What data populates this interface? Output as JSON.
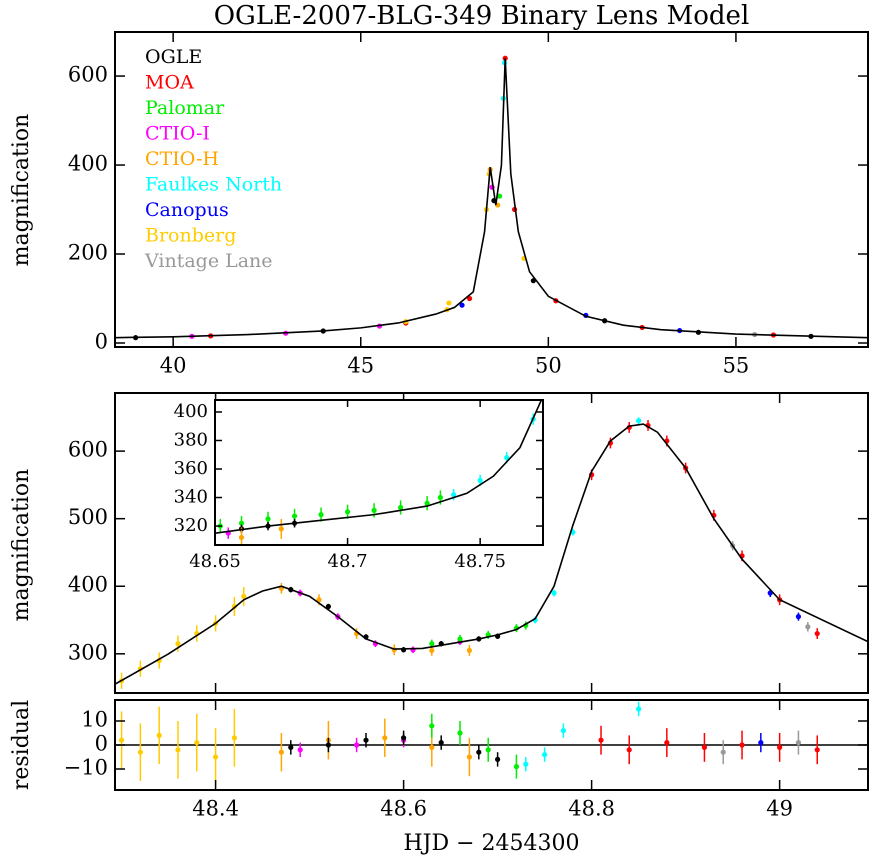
{
  "chart_data": [
    {
      "type": "scatter",
      "title": "OGLE-2007-BLG-349 Binary Lens Model",
      "ylabel": "magnification",
      "xlim": [
        38.45,
        58.52
      ],
      "ylim": [
        -9,
        699
      ],
      "xticks": [
        40,
        45,
        50,
        55
      ],
      "yticks": [
        0,
        200,
        400,
        600
      ],
      "legend": "upper left",
      "model": {
        "color": "#000000",
        "x": [
          38.45,
          40,
          42,
          44,
          45,
          46,
          47,
          47.5,
          48,
          48.3,
          48.45,
          48.6,
          48.75,
          48.85,
          49.0,
          49.2,
          49.5,
          50,
          51,
          52,
          53,
          55,
          58.52
        ],
        "values": [
          12,
          14,
          19,
          27,
          34,
          45,
          65,
          80,
          115,
          250,
          395,
          310,
          400,
          640,
          380,
          250,
          160,
          105,
          60,
          40,
          30,
          20,
          12
        ]
      },
      "series": [
        {
          "name": "OGLE",
          "color": "#000000",
          "x": [
            39,
            44,
            48.55,
            49.6,
            51.5,
            54,
            57
          ],
          "values": [
            12,
            27,
            320,
            140,
            50,
            24,
            15
          ]
        },
        {
          "name": "MOA",
          "color": "#ff0000",
          "x": [
            41,
            46.2,
            47.9,
            48.85,
            49.1,
            50.2,
            52.5,
            56
          ],
          "values": [
            16,
            45,
            100,
            640,
            300,
            95,
            35,
            18
          ]
        },
        {
          "name": "Palomar",
          "color": "#00ee00",
          "x": [
            48.7
          ],
          "values": [
            330
          ]
        },
        {
          "name": "CTIO-I",
          "color": "#ff00ff",
          "x": [
            40.5,
            43,
            45.5,
            48.5
          ],
          "values": [
            15,
            22,
            38,
            350
          ]
        },
        {
          "name": "CTIO-H",
          "color": "#ffa500",
          "x": [
            48.45,
            48.65
          ],
          "values": [
            390,
            310
          ]
        },
        {
          "name": "Faulkes North",
          "color": "#00ffff",
          "x": [
            48.8,
            48.83
          ],
          "values": [
            550,
            630
          ]
        },
        {
          "name": "Canopus",
          "color": "#0000ff",
          "x": [
            47.7,
            51,
            53.5
          ],
          "values": [
            85,
            62,
            28
          ]
        },
        {
          "name": "Bronberg",
          "color": "#ffcc00",
          "x": [
            46.2,
            47.3,
            47.35,
            48.35,
            48.42,
            49.35
          ],
          "values": [
            48,
            75,
            90,
            300,
            380,
            190
          ]
        },
        {
          "name": "Vintage Lane",
          "color": "#999999",
          "x": [
            55.5
          ],
          "values": [
            19
          ]
        }
      ]
    },
    {
      "type": "scatter",
      "ylabel": "magnification",
      "xlim": [
        48.293,
        49.094
      ],
      "ylim": [
        242,
        686
      ],
      "xticks": [
        48.4,
        48.6,
        48.8,
        49
      ],
      "yticks": [
        300,
        400,
        500,
        600
      ],
      "model": {
        "color": "#000000",
        "x": [
          48.293,
          48.35,
          48.4,
          48.43,
          48.45,
          48.47,
          48.5,
          48.53,
          48.56,
          48.59,
          48.62,
          48.65,
          48.68,
          48.7,
          48.72,
          48.74,
          48.76,
          48.78,
          48.8,
          48.82,
          48.84,
          48.855,
          48.87,
          48.9,
          48.93,
          48.96,
          49.0,
          49.094
        ],
        "values": [
          255,
          300,
          345,
          380,
          393,
          400,
          385,
          355,
          322,
          307,
          308,
          315,
          322,
          328,
          336,
          352,
          400,
          490,
          570,
          615,
          637,
          640,
          628,
          575,
          500,
          440,
          380,
          318
        ]
      },
      "series": [
        {
          "color": "#ffcc00",
          "x": [
            48.3,
            48.32,
            48.34,
            48.36,
            48.38,
            48.4,
            48.42,
            48.43
          ],
          "values": [
            260,
            278,
            290,
            315,
            330,
            345,
            370,
            385
          ],
          "errors": [
            12,
            12,
            12,
            12,
            12,
            12,
            14,
            14
          ]
        },
        {
          "color": "#ffa500",
          "x": [
            48.47,
            48.51,
            48.55,
            48.59,
            48.63,
            48.67
          ],
          "values": [
            397,
            380,
            330,
            306,
            305,
            305
          ],
          "errors": [
            8,
            8,
            8,
            8,
            8,
            8
          ]
        },
        {
          "color": "#ff00ff",
          "x": [
            48.49,
            48.53,
            48.57,
            48.61,
            48.66
          ],
          "values": [
            390,
            355,
            315,
            306,
            318
          ],
          "errors": [
            5,
            5,
            5,
            5,
            5
          ]
        },
        {
          "color": "#000000",
          "x": [
            48.48,
            48.52,
            48.56,
            48.6,
            48.64,
            48.68,
            48.7
          ],
          "values": [
            395,
            370,
            325,
            306,
            315,
            322,
            326
          ],
          "errors": [
            4,
            4,
            4,
            4,
            4,
            4,
            4
          ]
        },
        {
          "color": "#00ee00",
          "x": [
            48.63,
            48.66,
            48.69,
            48.72,
            48.73
          ],
          "values": [
            315,
            322,
            328,
            338,
            342
          ],
          "errors": [
            6,
            6,
            6,
            6,
            6
          ]
        },
        {
          "color": "#00ffff",
          "x": [
            48.74,
            48.76,
            48.78,
            48.85
          ],
          "values": [
            350,
            390,
            480,
            645
          ],
          "errors": [
            5,
            5,
            5,
            5
          ]
        },
        {
          "color": "#ff0000",
          "x": [
            48.8,
            48.82,
            48.84,
            48.86,
            48.88,
            48.9,
            48.93,
            48.96,
            49.0,
            49.04
          ],
          "values": [
            565,
            612,
            635,
            638,
            615,
            575,
            505,
            445,
            380,
            330
          ],
          "errors": [
            8,
            8,
            8,
            8,
            8,
            8,
            8,
            8,
            8,
            8
          ]
        },
        {
          "color": "#0000ff",
          "x": [
            48.99,
            49.02
          ],
          "values": [
            390,
            355
          ],
          "errors": [
            6,
            6
          ]
        },
        {
          "color": "#999999",
          "x": [
            48.95,
            49.03
          ],
          "values": [
            460,
            340
          ],
          "errors": [
            7,
            7
          ]
        }
      ]
    },
    {
      "type": "scatter",
      "xlim": [
        48.65,
        48.7737
      ],
      "ylim": [
        306.7,
        408.4
      ],
      "xticks": [
        48.65,
        48.7,
        48.75
      ],
      "yticks": [
        320,
        340,
        360,
        380,
        400
      ],
      "model": {
        "color": "#000000",
        "x": [
          48.65,
          48.67,
          48.69,
          48.71,
          48.73,
          48.745,
          48.755,
          48.765,
          48.773
        ],
        "values": [
          315,
          320,
          324,
          328,
          334,
          343,
          355,
          375,
          408
        ]
      },
      "series": [
        {
          "color": "#00ee00",
          "x": [
            48.652,
            48.66,
            48.67,
            48.68,
            48.69,
            48.7,
            48.71,
            48.72,
            48.73,
            48.735
          ],
          "values": [
            320,
            322,
            325,
            327,
            328,
            330,
            331,
            333,
            336,
            340
          ],
          "errors": [
            5,
            5,
            5,
            5,
            5,
            5,
            5,
            5,
            5,
            5
          ]
        },
        {
          "color": "#000000",
          "x": [
            48.66,
            48.67,
            48.68
          ],
          "values": [
            318,
            320,
            322
          ],
          "errors": [
            3,
            3,
            3
          ]
        },
        {
          "color": "#ff00ff",
          "x": [
            48.655
          ],
          "values": [
            315
          ],
          "errors": [
            4
          ]
        },
        {
          "color": "#ffa500",
          "x": [
            48.66,
            48.675
          ],
          "values": [
            312,
            318
          ],
          "errors": [
            7,
            7
          ]
        },
        {
          "color": "#00ffff",
          "x": [
            48.74,
            48.75,
            48.76,
            48.77
          ],
          "values": [
            342,
            352,
            368,
            395
          ],
          "errors": [
            4,
            4,
            4,
            4
          ]
        }
      ]
    },
    {
      "type": "scatter",
      "ylabel": "residual",
      "xlabel": "HJD − 2454300",
      "xlim": [
        48.293,
        49.094
      ],
      "ylim": [
        -18.75,
        18.75
      ],
      "xticks": [
        48.4,
        48.6,
        48.8,
        49
      ],
      "yticks": [
        10,
        0,
        {
          "value": -10,
          "label": "−10"
        }
      ],
      "hline": 0,
      "series": [
        {
          "color": "#ffcc00",
          "x": [
            48.3,
            48.32,
            48.34,
            48.36,
            48.38,
            48.4,
            48.42
          ],
          "values": [
            2,
            -3,
            4,
            -2,
            1,
            -5,
            3
          ],
          "errors": [
            12,
            12,
            12,
            12,
            12,
            12,
            12
          ]
        },
        {
          "color": "#ffa500",
          "x": [
            48.47,
            48.52,
            48.58,
            48.63,
            48.67
          ],
          "values": [
            -3,
            2,
            3,
            -1,
            -5
          ],
          "errors": [
            8,
            8,
            8,
            8,
            8
          ]
        },
        {
          "color": "#ff00ff",
          "x": [
            48.49,
            48.55,
            48.6
          ],
          "values": [
            -2,
            0,
            2
          ],
          "errors": [
            3,
            3,
            3
          ]
        },
        {
          "color": "#000000",
          "x": [
            48.48,
            48.52,
            48.56,
            48.6,
            48.64,
            48.68,
            48.7
          ],
          "values": [
            -1,
            0,
            2,
            3,
            1,
            -3,
            -6
          ],
          "errors": [
            3,
            3,
            3,
            3,
            3,
            3,
            3
          ]
        },
        {
          "color": "#00ee00",
          "x": [
            48.63,
            48.66,
            48.69,
            48.72
          ],
          "values": [
            8,
            5,
            -2,
            -9
          ],
          "errors": [
            5,
            5,
            5,
            5
          ]
        },
        {
          "color": "#00ffff",
          "x": [
            48.73,
            48.75,
            48.77,
            48.85
          ],
          "values": [
            -8,
            -4,
            6,
            15
          ],
          "errors": [
            3,
            3,
            3,
            3
          ]
        },
        {
          "color": "#ff0000",
          "x": [
            48.81,
            48.84,
            48.88,
            48.92,
            48.96,
            49.0,
            49.04
          ],
          "values": [
            2,
            -2,
            1,
            -1,
            0,
            -1,
            -2
          ],
          "errors": [
            6,
            6,
            6,
            6,
            6,
            6,
            6
          ]
        },
        {
          "color": "#0000ff",
          "x": [
            48.98
          ],
          "values": [
            1
          ],
          "errors": [
            4
          ]
        },
        {
          "color": "#999999",
          "x": [
            48.94,
            49.02
          ],
          "values": [
            -3,
            1
          ],
          "errors": [
            5,
            5
          ]
        }
      ]
    }
  ]
}
